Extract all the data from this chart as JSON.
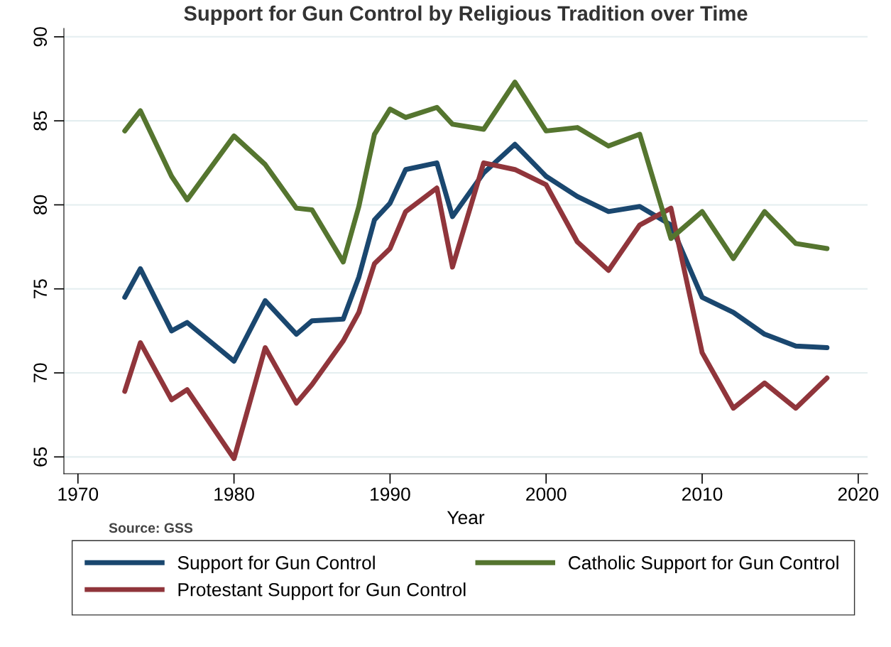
{
  "chart_data": {
    "type": "line",
    "title": "Support for Gun Control by Religious Tradition over Time",
    "xlabel": "Year",
    "x": [
      1973,
      1974,
      1976,
      1977,
      1980,
      1982,
      1984,
      1985,
      1987,
      1988,
      1989,
      1990,
      1991,
      1993,
      1994,
      1996,
      1998,
      2000,
      2002,
      2004,
      2006,
      2008,
      2010,
      2012,
      2014,
      2016,
      2018
    ],
    "series": [
      {
        "name": "Support for Gun Control",
        "color": "#1a476f",
        "values": [
          74.5,
          76.2,
          72.5,
          73.0,
          70.7,
          74.3,
          72.3,
          73.1,
          73.2,
          75.7,
          79.1,
          80.1,
          82.1,
          82.5,
          79.3,
          81.9,
          83.6,
          81.7,
          80.5,
          79.6,
          79.9,
          78.8,
          74.5,
          73.6,
          72.3,
          71.6,
          71.5
        ]
      },
      {
        "name": "Protestant Support for Gun Control",
        "color": "#90353b",
        "values": [
          68.9,
          71.8,
          68.4,
          69.0,
          64.9,
          71.5,
          68.2,
          69.3,
          71.9,
          73.6,
          76.5,
          77.4,
          79.6,
          81.0,
          76.3,
          82.5,
          82.1,
          81.2,
          77.8,
          76.1,
          78.8,
          79.8,
          71.2,
          67.9,
          69.4,
          67.9,
          69.7
        ]
      },
      {
        "name": "Catholic Support for Gun Control",
        "color": "#55752f",
        "values": [
          84.4,
          85.6,
          81.7,
          80.3,
          84.1,
          82.4,
          79.8,
          79.7,
          76.6,
          79.9,
          84.2,
          85.7,
          85.2,
          85.8,
          84.8,
          84.5,
          87.3,
          84.4,
          84.6,
          83.5,
          84.2,
          78.0,
          79.6,
          76.8,
          79.6,
          77.7,
          77.4
        ]
      }
    ],
    "xlim": [
      1969.1,
      2020.6
    ],
    "xticks": [
      1970,
      1980,
      1990,
      2000,
      2010,
      2020
    ],
    "ylim": [
      64,
      90.5
    ],
    "yticks": [
      65,
      70,
      75,
      80,
      85,
      90
    ],
    "grid": "y",
    "legend": "bottom",
    "marker": "none",
    "line_style": "solid",
    "annotations": [
      "Source: GSS"
    ]
  }
}
